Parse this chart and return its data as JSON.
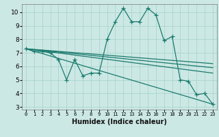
{
  "xlabel": "Humidex (Indice chaleur)",
  "background_color": "#cce8e4",
  "line_color": "#1a7a6e",
  "grid_color": "#aad4ce",
  "xlim": [
    -0.5,
    23.5
  ],
  "ylim": [
    2.8,
    10.6
  ],
  "xticks": [
    0,
    1,
    2,
    3,
    4,
    5,
    6,
    7,
    8,
    9,
    10,
    11,
    12,
    13,
    14,
    15,
    16,
    17,
    18,
    19,
    20,
    21,
    22,
    23
  ],
  "yticks": [
    3,
    4,
    5,
    6,
    7,
    8,
    9,
    10
  ],
  "line1_x": [
    0,
    1,
    2,
    3,
    4,
    5,
    6,
    7,
    8,
    9,
    10,
    11,
    12,
    13,
    14,
    15,
    16,
    17,
    18,
    19,
    20,
    21,
    22,
    23
  ],
  "line1_y": [
    7.3,
    7.1,
    7.1,
    7.0,
    6.5,
    5.0,
    6.5,
    5.3,
    5.5,
    5.5,
    8.0,
    9.3,
    10.3,
    9.3,
    9.3,
    10.3,
    9.8,
    7.9,
    8.2,
    5.0,
    4.9,
    3.9,
    4.0,
    3.2
  ],
  "line2_x": [
    0,
    23
  ],
  "line2_y": [
    7.3,
    5.5
  ],
  "line3_x": [
    0,
    23
  ],
  "line3_y": [
    7.3,
    6.2
  ],
  "line4_x": [
    0,
    23
  ],
  "line4_y": [
    7.3,
    3.2
  ],
  "line5_x": [
    0,
    23
  ],
  "line5_y": [
    7.3,
    5.9
  ]
}
